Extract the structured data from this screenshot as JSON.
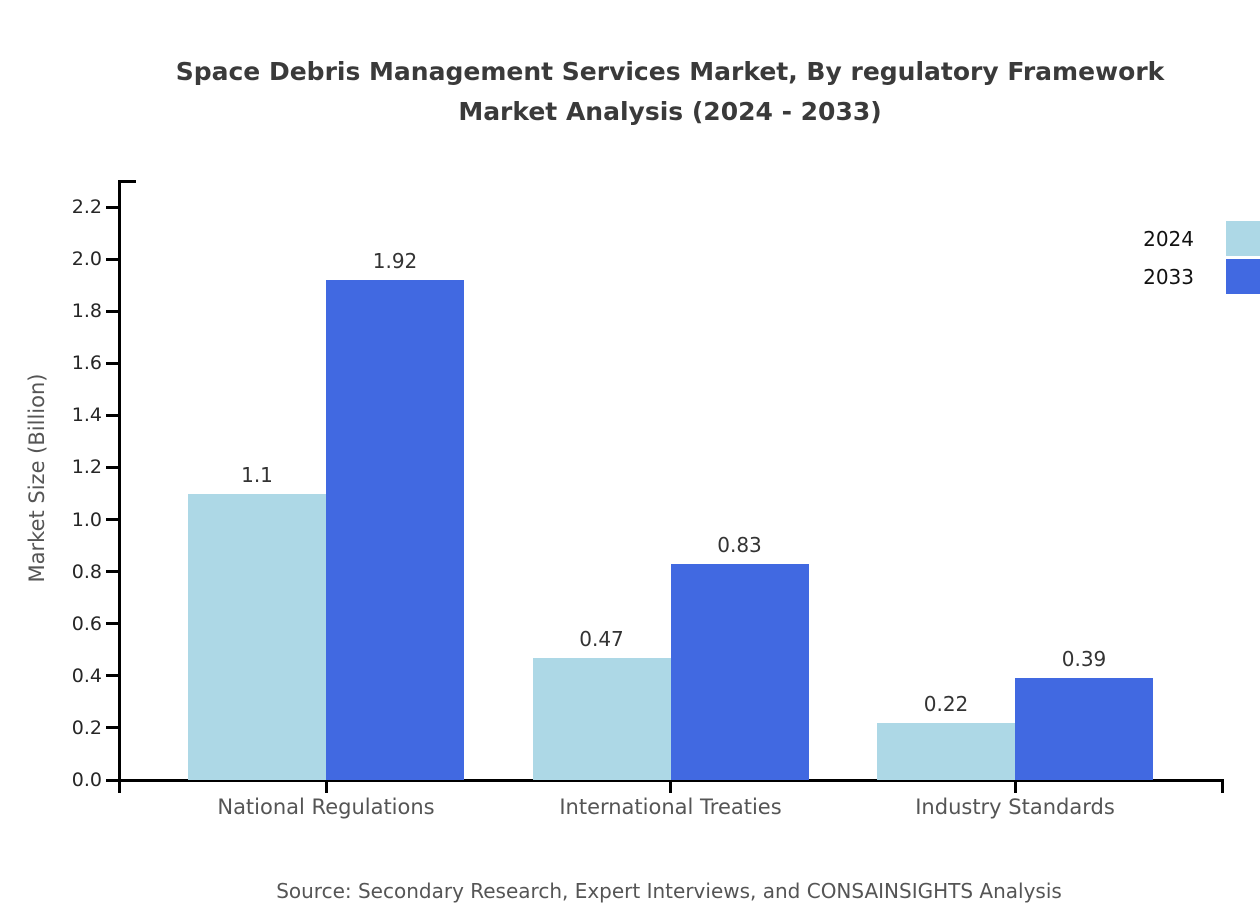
{
  "title_lines": [
    "Space Debris Management Services Market, By regulatory Framework",
    "Market Analysis (2024 - 2033)"
  ],
  "chart_data": {
    "type": "bar",
    "categories": [
      "National Regulations",
      "International Treaties",
      "Industry Standards"
    ],
    "series": [
      {
        "name": "2024",
        "color": "#ADD8E6",
        "values": [
          1.1,
          0.47,
          0.22
        ],
        "labels": [
          "1.1",
          "0.47",
          "0.22"
        ]
      },
      {
        "name": "2033",
        "color": "#4169E1",
        "values": [
          1.92,
          0.83,
          0.39
        ],
        "labels": [
          "1.92",
          "0.83",
          "0.39"
        ]
      }
    ],
    "ylabel": "Market Size (Billion)",
    "ylim": [
      0,
      2.3
    ],
    "yticks": [
      0.0,
      0.2,
      0.4,
      0.6,
      0.8,
      1.0,
      1.2,
      1.4,
      1.6,
      1.8,
      2.0,
      2.2
    ],
    "ytick_labels": [
      "0.0",
      "0.2",
      "0.4",
      "0.6",
      "0.8",
      "1.0",
      "1.2",
      "1.4",
      "1.6",
      "1.8",
      "2.0",
      "2.2"
    ],
    "legend_position": "upper right",
    "grid": false
  },
  "source_note": "Source: Secondary Research, Expert Interviews, and CONSAINSIGHTS Analysis",
  "colors": {
    "series_2024": "#ADD8E6",
    "series_2033": "#4169E1",
    "axis": "#000000",
    "title_text": "#3a3a3a",
    "muted_text": "#555555",
    "tick_text": "#262626"
  }
}
